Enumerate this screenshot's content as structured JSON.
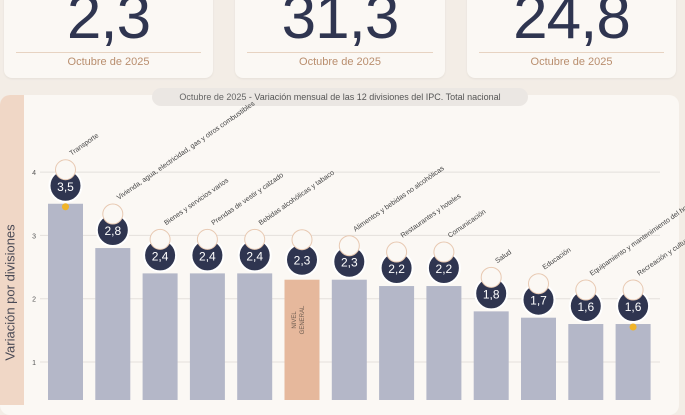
{
  "kpis": [
    {
      "value": "2,3",
      "label": "Octubre de 2025"
    },
    {
      "value": "31,3",
      "label": "Octubre de 2025"
    },
    {
      "value": "24,8",
      "label": "Octubre de 2025"
    }
  ],
  "colors": {
    "bar": "#b4b7c8",
    "highlight": "#e6b89c",
    "bubble": "#2f3550",
    "dot": "#f0b429"
  },
  "chart_data": {
    "type": "bar",
    "title_date": "Octubre de 2025",
    "title": " - Variación mensual de las 12 divisiones del IPC. Total nacional",
    "ylabel": "Variación por divisiones",
    "ylim": [
      0,
      4.3
    ],
    "yticks": [
      "1",
      "2",
      "3",
      "4"
    ],
    "categories": [
      "Transporte",
      "Vivienda, agua, electricidad, gas y otros combustibles",
      "Bienes y servicios varios",
      "Prendas de vestir y calzado",
      "Bebidas alcohólicas y tabaco",
      "NIVEL GENERAL",
      "Alimentos y bebidas no alcohólicas",
      "Restaurantes y hoteles",
      "Comunicación",
      "Salud",
      "Educación",
      "Equipamiento y mantenimiento del hogar",
      "Recreación y cultura"
    ],
    "values": [
      3.5,
      2.8,
      2.4,
      2.4,
      2.4,
      2.3,
      2.3,
      2.2,
      2.2,
      1.8,
      1.7,
      1.6,
      1.6
    ],
    "value_labels": [
      "3,5",
      "2,8",
      "2,4",
      "2,4",
      "2,4",
      "2,3",
      "2,3",
      "2,2",
      "2,2",
      "1,8",
      "1,7",
      "1,6",
      "1,6"
    ],
    "highlight_index": 5,
    "dot_markers": [
      0,
      12
    ],
    "icons": [
      "bus-icon",
      "lightbulb-icon",
      "comb-icon",
      "shoe-icon",
      "bottle-icon",
      "",
      "food-icon",
      "restaurant-icon",
      "phone-icon",
      "health-icon",
      "education-icon",
      "home-icon",
      "culture-icon"
    ]
  }
}
